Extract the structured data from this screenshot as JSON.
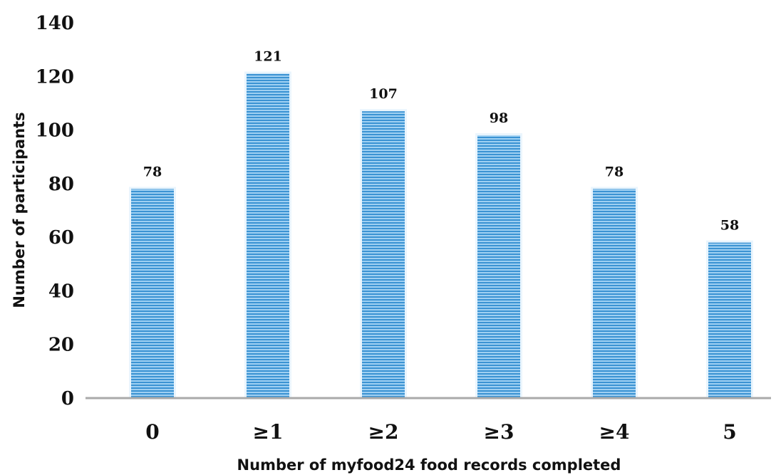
{
  "chart_data": {
    "type": "bar",
    "categories": [
      "0",
      "≥1",
      "≥2",
      "≥3",
      "≥4",
      "5"
    ],
    "values": [
      78,
      121,
      107,
      98,
      78,
      58
    ],
    "data_labels": [
      "78",
      "121",
      "107",
      "98",
      "78",
      "58"
    ],
    "title": "",
    "xlabel": "Number of myfood24 food records completed",
    "ylabel": "Number of participants",
    "ylim": [
      0,
      140
    ],
    "yticks": [
      "0",
      "20",
      "40",
      "60",
      "80",
      "100",
      "120",
      "140"
    ],
    "grid": false,
    "legend": "none",
    "bar_color": "#5aaee6",
    "bar_stripe_color": "#2f86c8",
    "axis_color": "#aaaaaa"
  }
}
